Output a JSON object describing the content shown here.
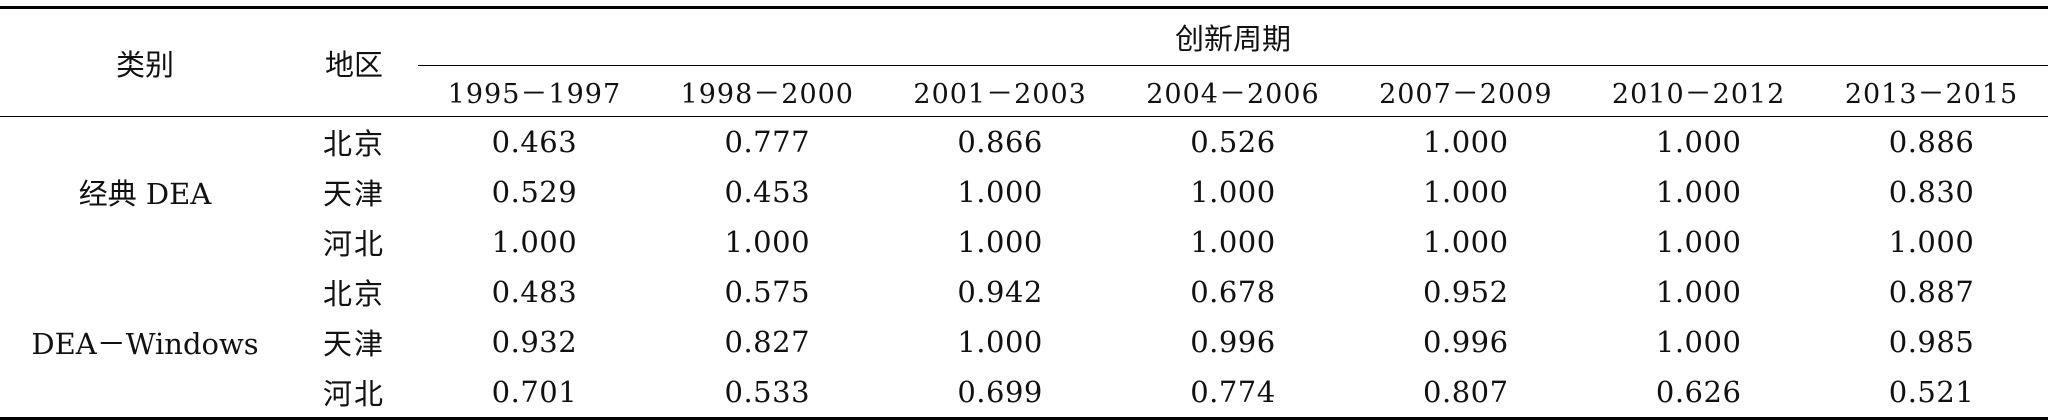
{
  "table": {
    "headers": {
      "category": "类别",
      "region": "地区",
      "period_group": "创新周期",
      "periods": [
        "1995－1997",
        "1998－2000",
        "2001－2003",
        "2004－2006",
        "2007－2009",
        "2010－2012",
        "2013－2015"
      ]
    },
    "groups": [
      {
        "category": "经典 DEA",
        "rows": [
          {
            "region": "北京",
            "values": [
              "0.463",
              "0.777",
              "0.866",
              "0.526",
              "1.000",
              "1.000",
              "0.886"
            ]
          },
          {
            "region": "天津",
            "values": [
              "0.529",
              "0.453",
              "1.000",
              "1.000",
              "1.000",
              "1.000",
              "0.830"
            ]
          },
          {
            "region": "河北",
            "values": [
              "1.000",
              "1.000",
              "1.000",
              "1.000",
              "1.000",
              "1.000",
              "1.000"
            ]
          }
        ]
      },
      {
        "category": "DEA－Windows",
        "rows": [
          {
            "region": "北京",
            "values": [
              "0.483",
              "0.575",
              "0.942",
              "0.678",
              "0.952",
              "1.000",
              "0.887"
            ]
          },
          {
            "region": "天津",
            "values": [
              "0.932",
              "0.827",
              "1.000",
              "0.996",
              "0.996",
              "1.000",
              "0.985"
            ]
          },
          {
            "region": "河北",
            "values": [
              "0.701",
              "0.533",
              "0.699",
              "0.774",
              "0.807",
              "0.626",
              "0.521"
            ]
          }
        ]
      }
    ]
  }
}
